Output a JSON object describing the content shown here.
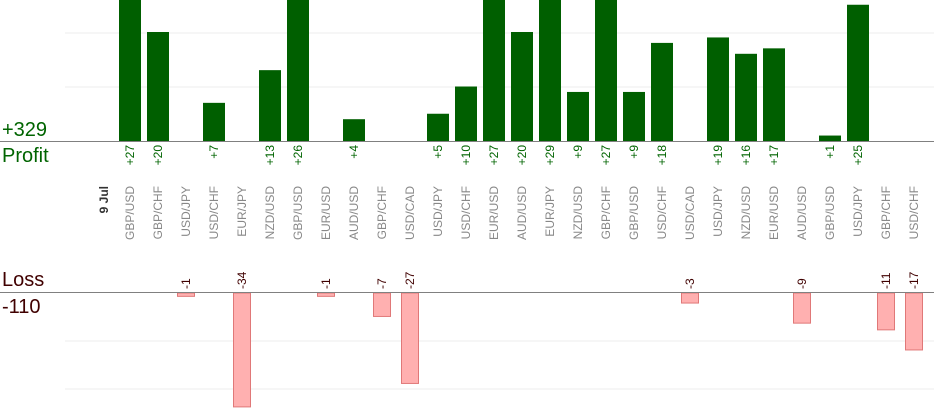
{
  "labels": {
    "profit_total": "+329",
    "profit_word": "Profit",
    "loss_word": "Loss",
    "loss_total": "-110",
    "date": "9 Jul"
  },
  "colors": {
    "profit_text": "#006400",
    "loss_text": "#400000",
    "profit_bar": "#005f00",
    "loss_bar": "#ffb0b0",
    "loss_bar_stroke": "#e07878",
    "grid": "#eeeeee",
    "axis": "#808080",
    "pair_label": "#888888",
    "date_label": "#333333"
  },
  "chart_data": {
    "type": "bar",
    "title": "",
    "date_label": "9 Jul",
    "grid": true,
    "categories": [
      "GBP/USD",
      "GBP/CHF",
      "USD/JPY",
      "USD/CHF",
      "EUR/JPY",
      "NZD/USD",
      "GBP/USD",
      "EUR/USD",
      "AUD/USD",
      "GBP/CHF",
      "USD/CAD",
      "USD/JPY",
      "USD/CHF",
      "EUR/USD",
      "AUD/USD",
      "EUR/JPY",
      "NZD/USD",
      "GBP/CHF",
      "GBP/USD",
      "USD/CHF",
      "USD/CAD",
      "USD/JPY",
      "NZD/USD",
      "EUR/USD",
      "AUD/USD",
      "GBP/USD",
      "USD/JPY",
      "GBP/CHF",
      "USD/CHF"
    ],
    "profit": {
      "total": "+329",
      "values": [
        27,
        20,
        null,
        7,
        null,
        13,
        26,
        null,
        4,
        null,
        null,
        5,
        10,
        27,
        20,
        29,
        9,
        27,
        9,
        18,
        null,
        19,
        16,
        17,
        null,
        1,
        25,
        null,
        null
      ],
      "labels": [
        "+27",
        "+20",
        "",
        "+7",
        "",
        "+13",
        "+26",
        "",
        "+4",
        "",
        "",
        "+5",
        "+10",
        "+27",
        "+20",
        "+29",
        "+9",
        "+27",
        "+9",
        "+18",
        "",
        "+19",
        "+16",
        "+17",
        "",
        "+1",
        "+25",
        "",
        ""
      ]
    },
    "loss": {
      "total": "-110",
      "values": [
        null,
        null,
        -1,
        null,
        -34,
        null,
        null,
        -1,
        null,
        -7,
        -27,
        null,
        null,
        null,
        null,
        null,
        null,
        null,
        null,
        null,
        -3,
        null,
        null,
        null,
        -9,
        null,
        null,
        -11,
        -17
      ],
      "labels": [
        "",
        "",
        "-1",
        "",
        "-34",
        "",
        "",
        "-1",
        "",
        "-7",
        "-27",
        "",
        "",
        "",
        "",
        "",
        "",
        "",
        "",
        "",
        "-3",
        "",
        "",
        "",
        "-9",
        "",
        "",
        "-11",
        "-17"
      ]
    }
  }
}
